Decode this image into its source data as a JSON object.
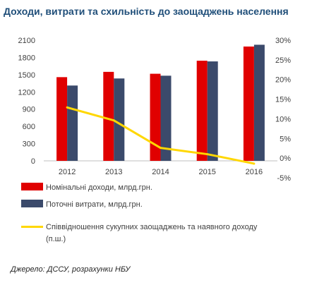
{
  "title": "Доходи, витрати та схильність до заощаджень населення",
  "chart_data": {
    "type": "bar",
    "categories": [
      "2012",
      "2013",
      "2014",
      "2015",
      "2016"
    ],
    "series": [
      {
        "name": "Номінальні доходи, млрд.грн.",
        "kind": "bar",
        "axis": "left",
        "color": "#e00000",
        "values": [
          1457,
          1549,
          1516,
          1743,
          1990
        ]
      },
      {
        "name": "Поточні витрати, млрд.грн.",
        "kind": "bar",
        "axis": "left",
        "color": "#3b4a6b",
        "values": [
          1311,
          1434,
          1482,
          1731,
          2021
        ]
      },
      {
        "name": "Співвідношення сукупних заощаджень та наявного доходу (п.ш.)",
        "kind": "line",
        "axis": "right",
        "color": "#ffd700",
        "values": [
          12.9,
          9.6,
          2.6,
          1.0,
          -1.4
        ]
      }
    ],
    "y_left": {
      "min": 0,
      "max": 2100,
      "ticks": [
        "0",
        "300",
        "600",
        "900",
        "1200",
        "1500",
        "1800",
        "2100"
      ]
    },
    "y_right": {
      "min": -5,
      "max": 30,
      "ticks": [
        "-5%",
        "0%",
        "5%",
        "10%",
        "15%",
        "20%",
        "25%",
        "30%"
      ]
    },
    "grid": false,
    "legend_position": "bottom"
  },
  "legend": [
    {
      "label": "Номінальні доходи, млрд.грн.",
      "color": "#e00000",
      "kind": "bar"
    },
    {
      "label": "Поточні витрати, млрд.грн.",
      "color": "#3b4a6b",
      "kind": "bar"
    },
    {
      "label": "Співвідношення сукупних заощаджень та наявного доходу (п.ш.)",
      "color": "#ffd700",
      "kind": "line"
    }
  ],
  "source": "Джерело: ДССУ, розрахунки НБУ"
}
